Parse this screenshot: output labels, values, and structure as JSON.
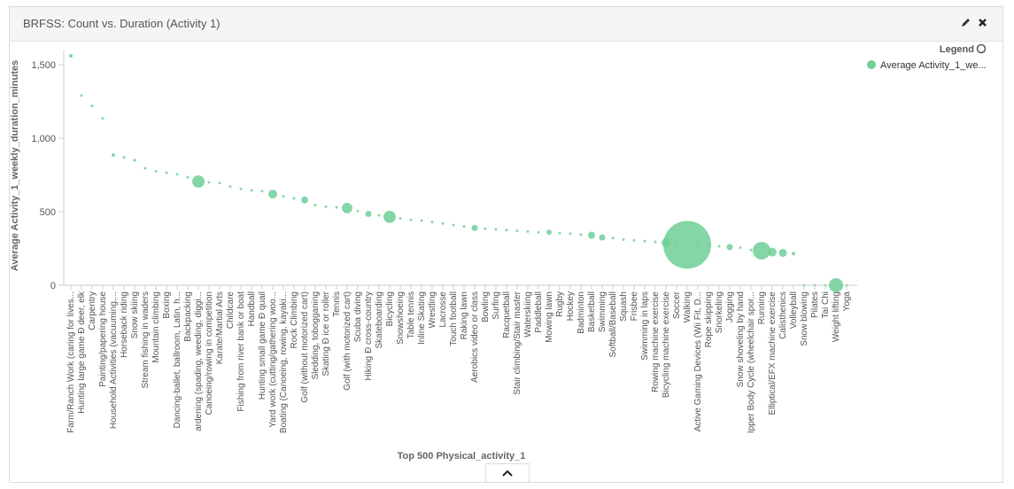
{
  "panel": {
    "title": "BRFSS: Count vs. Duration (Activity 1)"
  },
  "chart_data": {
    "type": "bubble",
    "ylabel": "Average Activity_1_weekly_duration_minutes",
    "xlabel": "Top 500 Physical_activity_1",
    "legend_title": "Legend",
    "legend": "top-right",
    "categories": [
      "Farm/Ranch Work (caring for lives...",
      "Hunting large game Ð deer, elk",
      "Carpentry",
      "Painting/papering house",
      "Household Activities (vacuuming,...",
      "Horseback riding",
      "Snow skiing",
      "Stream fishing in waders",
      "Mountain climbing",
      "Boxing",
      "Dancing-ballet, ballroom, Latin, h...",
      "Backpacking",
      "ardening (spading, weeding, diggi...",
      "Canoeing/rowing in competition",
      "Karate/Martial Arts",
      "Childcare",
      "Fishing from river bank or boat",
      "Handball",
      "Hunting small game Ð quail",
      "Yard work (cutting/gathering woo...",
      "Boating (Canoeing, rowing, kayaki...",
      "Rock Climbing",
      "Golf (without motorized cart)",
      "Sledding, tobogganing",
      "Skating Ð ice or roller",
      "Tennis",
      "Golf (with motorized cart)",
      "Scuba diving",
      "Hiking Ð cross-country",
      "Skateboarding",
      "Bicycling",
      "Snowshoeing",
      "Table tennis",
      "Inline Skating",
      "Wrestling",
      "Lacrosse",
      "Touch football",
      "Raking lawn",
      "Aerobics video or class",
      "Bowling",
      "Surfing",
      "Racquetball",
      "Stair climbing/Stair master",
      "Waterskiing",
      "Paddleball",
      "Mowing lawn",
      "Rugby",
      "Hockey",
      "Badminton",
      "Basketball",
      "Swimming",
      "Softball/Baseball",
      "Squash",
      "Frisbee",
      "Swimming in laps",
      "Rowing machine exercise",
      "Bicycling machine exercise",
      "Soccer",
      "Walking",
      "Active Gaming Devices (Wii Fit, D...",
      "Rope skipping",
      "Snorkeling",
      "Jogging",
      "Snow shoveling by hand",
      "Ipper Body Cycle (wheelchair spor...",
      "Running",
      "Elliptical/EFX machine exercise",
      "Calisthenics",
      "Volleyball",
      "Snow blowing",
      "Pilates",
      "Tai Chi",
      "Weight lifting",
      "Yoga"
    ],
    "series": [
      {
        "name": "Average Activity_1_we...",
        "color": "#6fcf97",
        "values": [
          1560,
          1290,
          1220,
          1135,
          885,
          870,
          850,
          795,
          775,
          765,
          755,
          735,
          705,
          700,
          695,
          670,
          655,
          645,
          640,
          620,
          605,
          590,
          580,
          545,
          535,
          530,
          525,
          505,
          485,
          475,
          465,
          455,
          445,
          440,
          430,
          420,
          410,
          400,
          390,
          385,
          380,
          375,
          370,
          365,
          360,
          360,
          355,
          350,
          345,
          340,
          325,
          320,
          310,
          305,
          300,
          295,
          290,
          285,
          275,
          275,
          270,
          265,
          260,
          255,
          240,
          235,
          225,
          220,
          215,
          0,
          0,
          0,
          0,
          0
        ],
        "sizes": [
          60,
          30,
          30,
          30,
          50,
          30,
          40,
          30,
          30,
          30,
          30,
          30,
          670,
          30,
          30,
          30,
          30,
          30,
          30,
          340,
          30,
          30,
          220,
          30,
          30,
          30,
          490,
          30,
          170,
          30,
          670,
          30,
          30,
          30,
          30,
          30,
          30,
          30,
          170,
          30,
          30,
          30,
          30,
          30,
          30,
          120,
          30,
          30,
          30,
          220,
          170,
          30,
          30,
          30,
          30,
          30,
          340,
          30,
          10000,
          30,
          30,
          30,
          170,
          30,
          30,
          1370,
          340,
          280,
          60,
          20,
          20,
          20,
          880,
          20
        ]
      }
    ],
    "ylim": [
      0,
      1600
    ],
    "yticks": [
      0,
      500,
      {
        "value": 1000,
        "label": "1,000"
      },
      {
        "value": 1500,
        "label": "1,500"
      }
    ],
    "grid": false
  }
}
